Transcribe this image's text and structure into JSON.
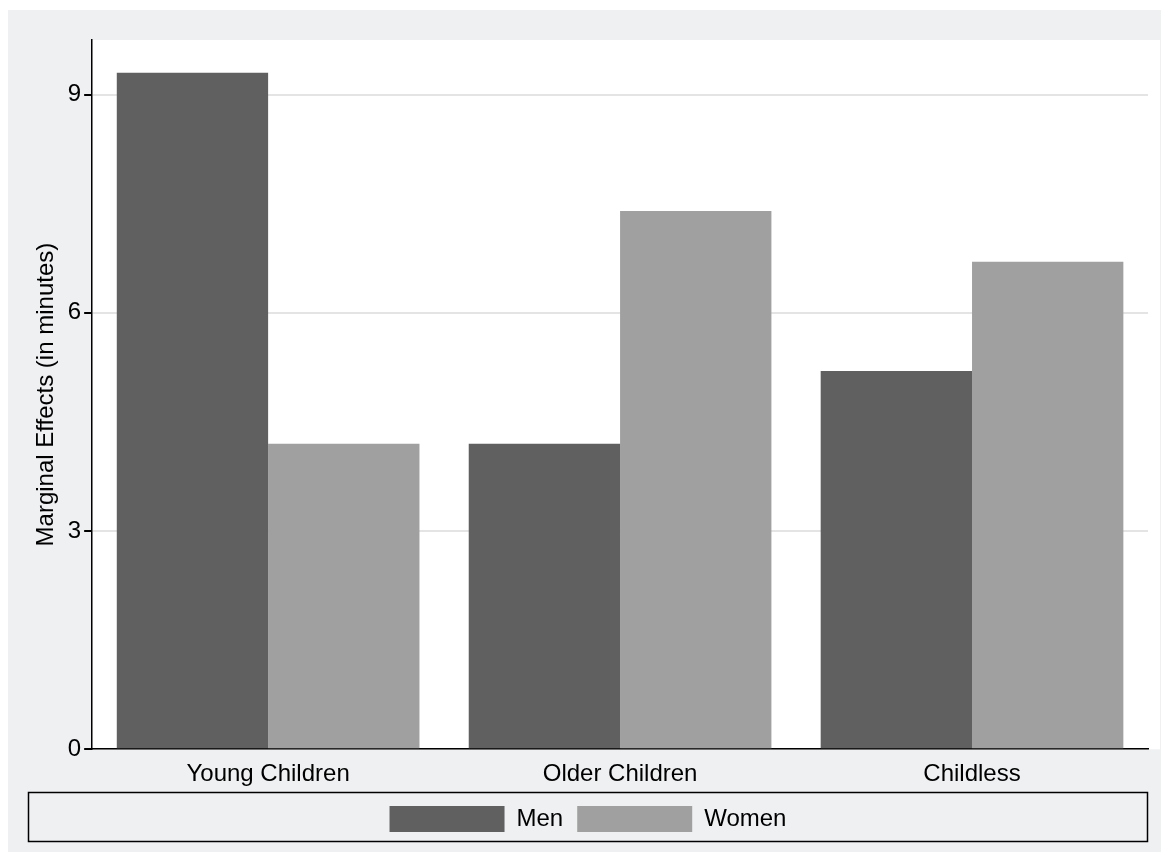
{
  "chart_data": {
    "type": "bar",
    "ylabel": "Marginal Effects (in minutes)",
    "categories": [
      "Young Children",
      "Older Children",
      "Childless"
    ],
    "series": [
      {
        "name": "Men",
        "color": "#606060",
        "values": [
          9.3,
          4.2,
          5.2
        ]
      },
      {
        "name": "Women",
        "color": "#a0a0a0",
        "values": [
          4.2,
          7.4,
          6.7
        ]
      }
    ],
    "ylim": [
      0,
      9.75
    ],
    "yticks": [
      0,
      3,
      6,
      9
    ],
    "grid": "y",
    "legend": "bottom"
  }
}
